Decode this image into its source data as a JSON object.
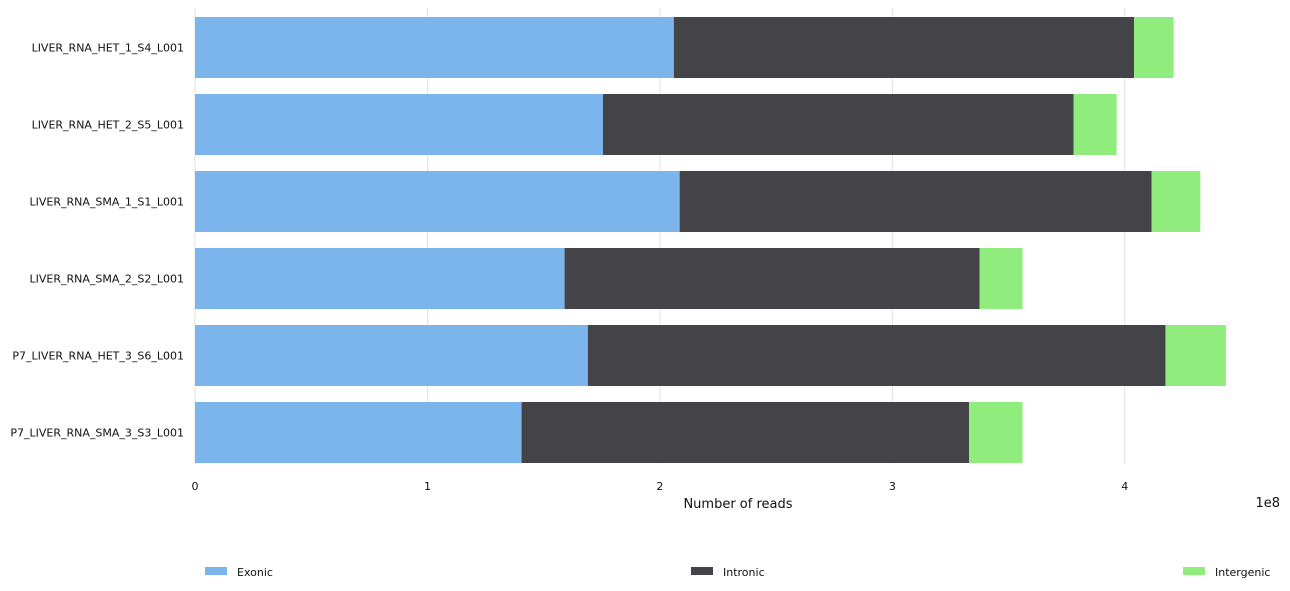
{
  "chart_data": {
    "type": "bar",
    "orientation": "horizontal",
    "stacked": true,
    "categories": [
      "LIVER_RNA_HET_1_S4_L001",
      "LIVER_RNA_HET_2_S5_L001",
      "LIVER_RNA_SMA_1_S1_L001",
      "LIVER_RNA_SMA_2_S2_L001",
      "P7_LIVER_RNA_HET_3_S6_L001",
      "P7_LIVER_RNA_SMA_3_S3_L001"
    ],
    "series": [
      {
        "name": "Exonic",
        "color": "#7cb5ec",
        "values": [
          206000000,
          175500000,
          208500000,
          159000000,
          169000000,
          140500000
        ]
      },
      {
        "name": "Intronic",
        "color": "#434348",
        "values": [
          198000000,
          202500000,
          203000000,
          178500000,
          248500000,
          192500000
        ]
      },
      {
        "name": "Intergenic",
        "color": "#90ed7d",
        "values": [
          17000000,
          18500000,
          21000000,
          18500000,
          26000000,
          23000000
        ]
      }
    ],
    "xlabel": "Number of reads",
    "xlim": [
      0,
      450000000
    ],
    "x_ticks": [
      0,
      100000000,
      200000000,
      300000000,
      400000000
    ],
    "x_tick_labels": [
      "0",
      "1",
      "2",
      "3",
      "4"
    ],
    "x_offset_label": "1e8",
    "grid": "vertical",
    "legend_position": "bottom"
  }
}
